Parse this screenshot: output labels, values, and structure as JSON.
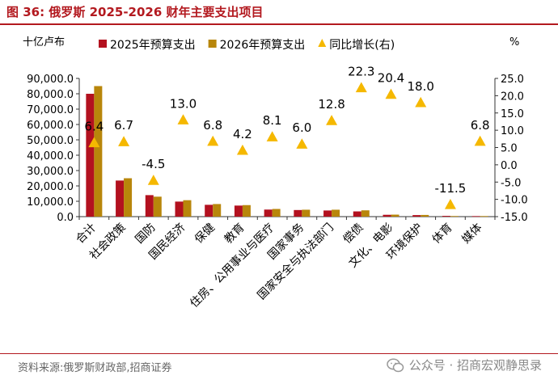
{
  "figure": {
    "label": "图 36:",
    "title": "俄罗斯 2025-2026 财年主要支出项目",
    "source": "资料来源:俄罗斯财政部,招商证券",
    "watermark": "公众号 · 招商宏观静思录"
  },
  "chart_data": {
    "type": "bar",
    "categories": [
      "合计",
      "社会政策",
      "国防",
      "国民经济",
      "保健",
      "教育",
      "住房、公用事业与医疗",
      "国家事务",
      "国家安全与执法部门",
      "偿债",
      "文化、电影",
      "环境保护",
      "体育",
      "媒体"
    ],
    "series": [
      {
        "name": "2025年预算支出",
        "type": "bar",
        "axis": "left",
        "color": "#b3111f",
        "values": [
          80000,
          23500,
          14000,
          9800,
          7700,
          7200,
          4600,
          4300,
          4000,
          3400,
          1200,
          1000,
          500,
          350
        ]
      },
      {
        "name": "2026年预算支出",
        "type": "bar",
        "axis": "left",
        "color": "#b8860b",
        "values": [
          85000,
          25000,
          13000,
          10700,
          8200,
          7500,
          5000,
          4500,
          4500,
          4100,
          1300,
          1100,
          400,
          380
        ]
      },
      {
        "name": "同比增长(右)",
        "type": "scatter",
        "axis": "right",
        "marker": "triangle",
        "color": "#f5b800",
        "values": [
          6.4,
          6.7,
          -4.5,
          13.0,
          6.8,
          4.2,
          8.1,
          6.0,
          12.8,
          22.3,
          20.4,
          18.0,
          -11.5,
          6.8
        ],
        "labels": [
          "6.4",
          "6.7",
          "-4.5",
          "13.0",
          "6.8",
          "4.2",
          "8.1",
          "6.0",
          "12.8",
          "22.3",
          "20.4",
          "18.0",
          "-11.5",
          "6.8"
        ]
      }
    ],
    "y_left": {
      "label": "十亿卢布",
      "ylim": [
        0,
        90000
      ],
      "ticks": [
        "0.0",
        "10,000.0",
        "20,000.0",
        "30,000.0",
        "40,000.0",
        "50,000.0",
        "60,000.0",
        "70,000.0",
        "80,000.0",
        "90,000.0"
      ]
    },
    "y_right": {
      "label": "%",
      "ylim": [
        -15,
        25
      ],
      "ticks": [
        "-15.0",
        "-10.0",
        "-5.0",
        "0.0",
        "5.0",
        "10.0",
        "15.0",
        "20.0",
        "25.0"
      ]
    },
    "legend": "top",
    "grid": false
  }
}
